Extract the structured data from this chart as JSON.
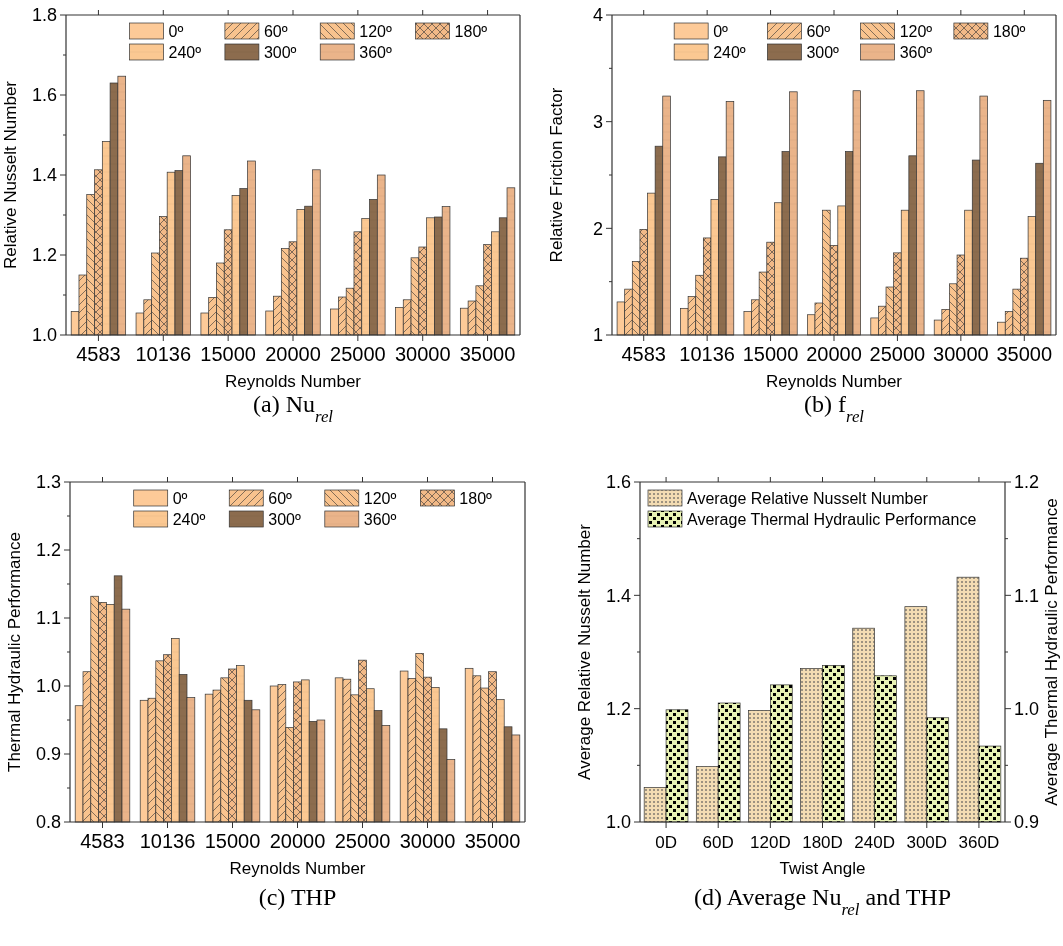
{
  "chart_data": [
    {
      "type": "bar",
      "title": "(a) Nu$_{rel}$",
      "xlabel": "Reynolds Number",
      "ylabel": "Relative Nusselt Number",
      "legend": "top",
      "categories": [
        "4583",
        "10136",
        "15000",
        "20000",
        "25000",
        "30000",
        "35000"
      ],
      "ylim": [
        1.0,
        1.8
      ],
      "yticks": [
        {
          "value": 1.0,
          "label": "1.0"
        },
        {
          "value": 1.1,
          "label": null
        },
        1.2,
        {
          "value": 1.3,
          "label": null
        },
        1.4,
        {
          "value": 1.5,
          "label": null
        },
        1.6,
        {
          "value": 1.7,
          "label": null
        },
        1.8
      ],
      "series": [
        {
          "name": "0º",
          "color": "#fdca98",
          "values": [
            1.059,
            1.055,
            1.055,
            1.06,
            1.065,
            1.069,
            1.067
          ]
        },
        {
          "name": "60º",
          "color": "#f9c38e",
          "values": [
            1.15,
            1.088,
            1.094,
            1.097,
            1.095,
            1.088,
            1.085
          ]
        },
        {
          "name": "120º",
          "color": "#f9c38e",
          "values": [
            1.351,
            1.205,
            1.18,
            1.216,
            1.117,
            1.193,
            1.123
          ]
        },
        {
          "name": "180º",
          "color": "#f2b987",
          "values": [
            1.413,
            1.296,
            1.263,
            1.233,
            1.258,
            1.22,
            1.226
          ]
        },
        {
          "name": "240º",
          "color": "#fbc892",
          "values": [
            1.484,
            1.407,
            1.349,
            1.314,
            1.291,
            1.293,
            1.258
          ]
        },
        {
          "name": "300º",
          "color": "#8c6c4e",
          "values": [
            1.63,
            1.411,
            1.366,
            1.322,
            1.339,
            1.295,
            1.293
          ]
        },
        {
          "name": "360º",
          "color": "#eab48a",
          "values": [
            1.647,
            1.448,
            1.435,
            1.413,
            1.4,
            1.321,
            1.368
          ]
        }
      ]
    },
    {
      "type": "bar",
      "title": "(b) f$_{rel}$",
      "xlabel": "Reynolds Number",
      "ylabel": "Relative Friction Factor",
      "legend": "top",
      "categories": [
        "4583",
        "10136",
        "15000",
        "20000",
        "25000",
        "30000",
        "35000"
      ],
      "ylim": [
        1,
        4
      ],
      "yticks": [
        1,
        {
          "value": 1.5,
          "label": null
        },
        2,
        {
          "value": 2.5,
          "label": null
        },
        3,
        {
          "value": 3.5,
          "label": null
        },
        4
      ],
      "series": [
        {
          "name": "0º",
          "color": "#fdca98",
          "values": [
            1.31,
            1.25,
            1.22,
            1.19,
            1.16,
            1.14,
            1.12
          ]
        },
        {
          "name": "60º",
          "color": "#f9c38e",
          "values": [
            1.43,
            1.36,
            1.33,
            1.3,
            1.27,
            1.24,
            1.22
          ]
        },
        {
          "name": "120º",
          "color": "#f9c38e",
          "values": [
            1.69,
            1.56,
            1.59,
            2.17,
            1.45,
            1.48,
            1.43
          ]
        },
        {
          "name": "180º",
          "color": "#f2b987",
          "values": [
            1.99,
            1.91,
            1.87,
            1.84,
            1.77,
            1.75,
            1.72
          ]
        },
        {
          "name": "240º",
          "color": "#fbc892",
          "values": [
            2.33,
            2.27,
            2.24,
            2.21,
            2.17,
            2.17,
            2.11
          ]
        },
        {
          "name": "300º",
          "color": "#8c6c4e",
          "values": [
            2.77,
            2.67,
            2.72,
            2.72,
            2.68,
            2.64,
            2.61
          ]
        },
        {
          "name": "360º",
          "color": "#eab48a",
          "values": [
            3.24,
            3.19,
            3.28,
            3.29,
            3.29,
            3.24,
            3.2
          ]
        }
      ]
    },
    {
      "type": "bar",
      "title": "(c) THP",
      "xlabel": "Reynolds Number",
      "ylabel": "Thermal Hydraulic Performance",
      "legend": "top",
      "categories": [
        "4583",
        "10136",
        "15000",
        "20000",
        "25000",
        "30000",
        "35000"
      ],
      "ylim": [
        0.8,
        1.3
      ],
      "yticks": [
        0.8,
        {
          "value": 0.85,
          "label": null
        },
        0.9,
        {
          "value": 0.95,
          "label": null
        },
        {
          "value": 1.0,
          "label": "1.0"
        },
        {
          "value": 1.05,
          "label": null
        },
        1.1,
        {
          "value": 1.15,
          "label": null
        },
        1.2,
        {
          "value": 1.25,
          "label": null
        },
        1.3
      ],
      "series": [
        {
          "name": "0º",
          "color": "#fdca98",
          "values": [
            0.971,
            0.979,
            0.988,
            1.0,
            1.012,
            1.022,
            1.026
          ]
        },
        {
          "name": "60º",
          "color": "#f9c38e",
          "values": [
            1.021,
            0.982,
            0.994,
            1.002,
            1.01,
            1.011,
            1.015
          ]
        },
        {
          "name": "120º",
          "color": "#f9c38e",
          "values": [
            1.132,
            1.037,
            1.012,
            0.939,
            0.987,
            1.048,
            0.997
          ]
        },
        {
          "name": "180º",
          "color": "#f2b987",
          "values": [
            1.123,
            1.046,
            1.025,
            1.006,
            1.038,
            1.013,
            1.021
          ]
        },
        {
          "name": "240º",
          "color": "#fbc892",
          "values": [
            1.12,
            1.07,
            1.03,
            1.009,
            0.996,
            0.998,
            0.98
          ]
        },
        {
          "name": "300º",
          "color": "#8c6c4e",
          "values": [
            1.162,
            1.017,
            0.979,
            0.948,
            0.964,
            0.937,
            0.94
          ]
        },
        {
          "name": "360º",
          "color": "#eab48a",
          "values": [
            1.113,
            0.983,
            0.965,
            0.95,
            0.942,
            0.892,
            0.928
          ]
        }
      ]
    },
    {
      "type": "bar",
      "title": "(d) Average Nu$_{rel}$ and THP",
      "xlabel": "Twist Angle",
      "ylabel": "Average Relative Nusselt Number",
      "y2label": "Average Thermal Hydraulic Performance",
      "legend": "top left",
      "categories": [
        "0D",
        "60D",
        "120D",
        "180D",
        "240D",
        "300D",
        "360D"
      ],
      "ylim": [
        1.0,
        1.6
      ],
      "yticks": [
        {
          "value": 1.0,
          "label": "1.0"
        },
        {
          "value": 1.1,
          "label": null
        },
        1.2,
        {
          "value": 1.3,
          "label": null
        },
        1.4,
        {
          "value": 1.5,
          "label": null
        },
        1.6
      ],
      "y2lim": [
        0.9,
        1.2
      ],
      "y2ticks": [
        0.9,
        {
          "value": 0.95,
          "label": null
        },
        {
          "value": 1.0,
          "label": "1.0"
        },
        {
          "value": 1.05,
          "label": null
        },
        1.1,
        {
          "value": 1.15,
          "label": null
        },
        1.2
      ],
      "series": [
        {
          "name": "Average Relative Nusselt Number",
          "color": "#f3dcb3",
          "values": [
            1.061,
            1.098,
            1.197,
            1.271,
            1.342,
            1.38,
            1.432
          ]
        },
        {
          "name": "Average Thermal Hydraulic Performance",
          "color": "#e8f2b4",
          "axis": "y2",
          "values": [
            0.999,
            1.005,
            1.021,
            1.038,
            1.029,
            0.992,
            0.967
          ]
        }
      ]
    }
  ]
}
